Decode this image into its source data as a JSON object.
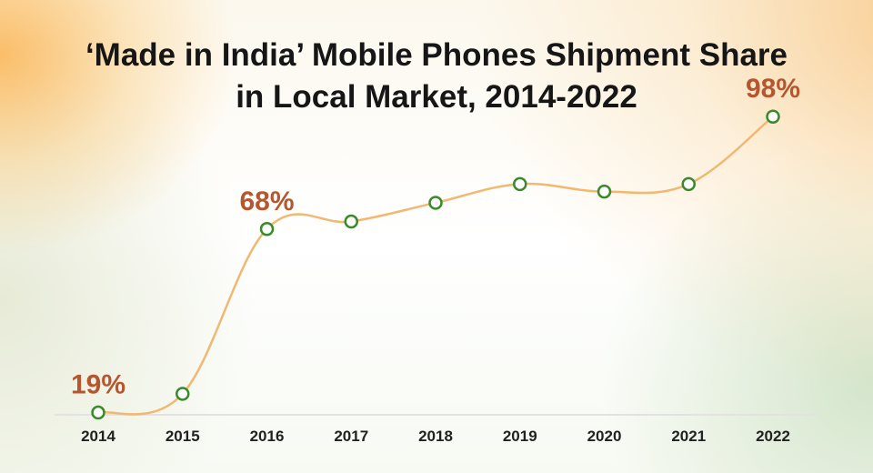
{
  "chart_data": {
    "type": "line",
    "title_line1": "‘Made in India’ Mobile Phones Shipment Share",
    "title_line2": "in Local Market, 2014-2022",
    "categories": [
      "2014",
      "2015",
      "2016",
      "2017",
      "2018",
      "2019",
      "2020",
      "2021",
      "2022"
    ],
    "values": [
      19,
      24,
      68,
      70,
      75,
      80,
      78,
      80,
      98
    ],
    "data_labels": [
      {
        "index": 0,
        "text": "19%"
      },
      {
        "index": 2,
        "text": "68%"
      },
      {
        "index": 8,
        "text": "98%"
      }
    ],
    "ylim": [
      15,
      100
    ],
    "grid": false,
    "line_color": "#f0b870",
    "marker_color": "#3a8a2a",
    "label_color": "#b5562e"
  }
}
